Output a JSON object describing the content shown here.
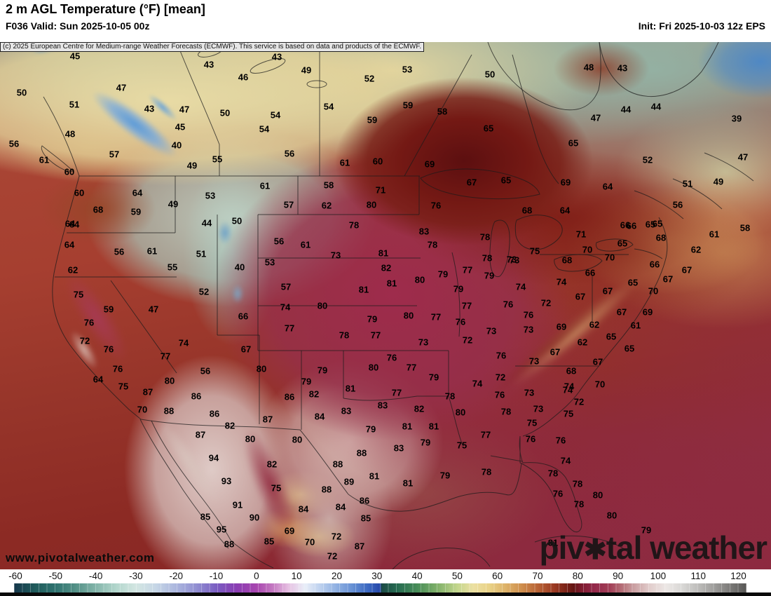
{
  "header": {
    "title": "2 m AGL Temperature (°F) [mean]",
    "valid": "F036 Valid: Sun 2025-10-05 00z",
    "init": "Init: Fri 2025-10-03 12z EPS"
  },
  "copyright": "(c) 2025 European Centre for Medium-range Weather Forecasts (ECMWF). This service is based on data and products of the ECMWF.",
  "watermark": {
    "site": "www.pivotalweather.com",
    "brand_left": "piv",
    "brand_flower": "✱",
    "brand_right": "tal weather"
  },
  "chart_data": {
    "type": "heatmap",
    "title": "2 m AGL Temperature (°F) [mean]",
    "units": "°F",
    "model": "ECMWF EPS ensemble mean",
    "forecast_hour": "F036",
    "valid_time": "Sun 2025-10-05 00z",
    "init_time": "Fri 2025-10-03 12z",
    "legend_position": "bottom",
    "colorbar": {
      "min": -60,
      "max": 120,
      "ticks": [
        -60,
        -50,
        -40,
        -30,
        -20,
        -10,
        0,
        10,
        20,
        30,
        40,
        50,
        60,
        70,
        80,
        90,
        100,
        110,
        120
      ],
      "stops": [
        [
          -60,
          "#173a4d"
        ],
        [
          -55,
          "#205c5c"
        ],
        [
          -50,
          "#2f7370"
        ],
        [
          -45,
          "#549187"
        ],
        [
          -40,
          "#83b5aa"
        ],
        [
          -35,
          "#b2d6cc"
        ],
        [
          -30,
          "#d3e6e2"
        ],
        [
          -25,
          "#c6d6e6"
        ],
        [
          -20,
          "#abb6de"
        ],
        [
          -15,
          "#9290d2"
        ],
        [
          -10,
          "#7a5ec2"
        ],
        [
          -5,
          "#8a3eb3"
        ],
        [
          0,
          "#a846af"
        ],
        [
          4,
          "#c478c1"
        ],
        [
          8,
          "#e6c0e2"
        ],
        [
          12,
          "#e9eef8"
        ],
        [
          16,
          "#bcd0ee"
        ],
        [
          20,
          "#8fb0e2"
        ],
        [
          24,
          "#6690d4"
        ],
        [
          28,
          "#3a66c0"
        ],
        [
          30.8,
          "#2547a8"
        ],
        [
          31.2,
          "#1c4a44"
        ],
        [
          35,
          "#266b51"
        ],
        [
          40,
          "#478c58"
        ],
        [
          45,
          "#7fb069"
        ],
        [
          50,
          "#c3d68d"
        ],
        [
          54,
          "#ece0a2"
        ],
        [
          58,
          "#e9d287"
        ],
        [
          62,
          "#ddb269"
        ],
        [
          66,
          "#cf8f4e"
        ],
        [
          70,
          "#b96436"
        ],
        [
          74,
          "#9c3c24"
        ],
        [
          77,
          "#7c2418"
        ],
        [
          79,
          "#641414"
        ],
        [
          81,
          "#7f1c30"
        ],
        [
          84,
          "#93284a"
        ],
        [
          88,
          "#a23f57"
        ],
        [
          91,
          "#b56f77"
        ],
        [
          94,
          "#caa0a2"
        ],
        [
          98,
          "#e2cecd"
        ],
        [
          102,
          "#ece7e5"
        ],
        [
          106,
          "#d9d8d6"
        ],
        [
          110,
          "#bdbcba"
        ],
        [
          114,
          "#9e9d9b"
        ],
        [
          118,
          "#7b7a78"
        ],
        [
          122,
          "#585755"
        ]
      ]
    },
    "station_values": [
      [
        107,
        80,
        "45"
      ],
      [
        298,
        92,
        "43"
      ],
      [
        347,
        110,
        "46"
      ],
      [
        173,
        125,
        "47"
      ],
      [
        31,
        132,
        "50"
      ],
      [
        106,
        149,
        "51"
      ],
      [
        213,
        155,
        "43"
      ],
      [
        263,
        156,
        "47"
      ],
      [
        321,
        161,
        "50"
      ],
      [
        257,
        181,
        "45"
      ],
      [
        100,
        191,
        "48"
      ],
      [
        20,
        205,
        "56"
      ],
      [
        252,
        207,
        "40"
      ],
      [
        163,
        220,
        "57"
      ],
      [
        310,
        227,
        "55"
      ],
      [
        63,
        228,
        "61"
      ],
      [
        274,
        236,
        "49"
      ],
      [
        99,
        245,
        "60"
      ],
      [
        113,
        275,
        "60"
      ],
      [
        196,
        275,
        "64"
      ],
      [
        300,
        279,
        "53"
      ],
      [
        247,
        291,
        "49"
      ],
      [
        140,
        299,
        "68"
      ],
      [
        194,
        302,
        "59"
      ],
      [
        100,
        319,
        "64"
      ],
      [
        295,
        318,
        "44"
      ],
      [
        338,
        315,
        "50"
      ],
      [
        395,
        81,
        "43"
      ],
      [
        437,
        100,
        "49"
      ],
      [
        527,
        112,
        "52"
      ],
      [
        581,
        99,
        "53"
      ],
      [
        699,
        106,
        "50"
      ],
      [
        469,
        152,
        "54"
      ],
      [
        582,
        150,
        "59"
      ],
      [
        631,
        159,
        "58"
      ],
      [
        393,
        164,
        "54"
      ],
      [
        377,
        184,
        "54"
      ],
      [
        531,
        171,
        "59"
      ],
      [
        697,
        183,
        "65"
      ],
      [
        413,
        219,
        "56"
      ],
      [
        492,
        232,
        "61"
      ],
      [
        539,
        230,
        "60"
      ],
      [
        613,
        234,
        "69"
      ],
      [
        673,
        260,
        "67"
      ],
      [
        722,
        257,
        "65"
      ],
      [
        378,
        265,
        "61"
      ],
      [
        469,
        264,
        "58"
      ],
      [
        543,
        271,
        "71"
      ],
      [
        412,
        292,
        "57"
      ],
      [
        466,
        293,
        "62"
      ],
      [
        530,
        292,
        "80"
      ],
      [
        622,
        293,
        "76"
      ],
      [
        840,
        96,
        "48"
      ],
      [
        888,
        97,
        "43"
      ],
      [
        893,
        156,
        "44"
      ],
      [
        936,
        152,
        "44"
      ],
      [
        1051,
        169,
        "39"
      ],
      [
        850,
        168,
        "47"
      ],
      [
        818,
        204,
        "65"
      ],
      [
        924,
        228,
        "52"
      ],
      [
        1060,
        224,
        "47"
      ],
      [
        807,
        260,
        "69"
      ],
      [
        867,
        266,
        "64"
      ],
      [
        981,
        262,
        "51"
      ],
      [
        1025,
        259,
        "49"
      ],
      [
        967,
        292,
        "56"
      ],
      [
        806,
        300,
        "64"
      ],
      [
        752,
        300,
        "68"
      ],
      [
        892,
        321,
        "66"
      ],
      [
        928,
        320,
        "65"
      ],
      [
        106,
        320,
        "64"
      ],
      [
        99,
        349,
        "64"
      ],
      [
        170,
        359,
        "56"
      ],
      [
        217,
        358,
        "61"
      ],
      [
        287,
        362,
        "51"
      ],
      [
        246,
        381,
        "55"
      ],
      [
        342,
        381,
        "40"
      ],
      [
        104,
        385,
        "62"
      ],
      [
        291,
        416,
        "52"
      ],
      [
        112,
        420,
        "75"
      ],
      [
        155,
        441,
        "59"
      ],
      [
        219,
        441,
        "47"
      ],
      [
        347,
        451,
        "66"
      ],
      [
        127,
        460,
        "76"
      ],
      [
        121,
        486,
        "72"
      ],
      [
        262,
        489,
        "74"
      ],
      [
        155,
        498,
        "76"
      ],
      [
        351,
        498,
        "67"
      ],
      [
        236,
        508,
        "77"
      ],
      [
        168,
        526,
        "76"
      ],
      [
        293,
        529,
        "56"
      ],
      [
        140,
        541,
        "64"
      ],
      [
        242,
        543,
        "80"
      ],
      [
        176,
        551,
        "75"
      ],
      [
        505,
        321,
        "78"
      ],
      [
        605,
        330,
        "83"
      ],
      [
        692,
        338,
        "78"
      ],
      [
        398,
        344,
        "56"
      ],
      [
        436,
        349,
        "61"
      ],
      [
        617,
        349,
        "78"
      ],
      [
        479,
        364,
        "73"
      ],
      [
        547,
        361,
        "81"
      ],
      [
        695,
        368,
        "78"
      ],
      [
        730,
        370,
        "73"
      ],
      [
        385,
        374,
        "53"
      ],
      [
        551,
        382,
        "82"
      ],
      [
        667,
        385,
        "77"
      ],
      [
        632,
        391,
        "79"
      ],
      [
        698,
        393,
        "79"
      ],
      [
        599,
        399,
        "80"
      ],
      [
        559,
        404,
        "81"
      ],
      [
        408,
        409,
        "57"
      ],
      [
        654,
        412,
        "79"
      ],
      [
        519,
        413,
        "81"
      ],
      [
        407,
        438,
        "74"
      ],
      [
        460,
        436,
        "80"
      ],
      [
        666,
        436,
        "77"
      ],
      [
        725,
        434,
        "76"
      ],
      [
        583,
        450,
        "80"
      ],
      [
        622,
        452,
        "77"
      ],
      [
        531,
        455,
        "79"
      ],
      [
        657,
        459,
        "76"
      ],
      [
        413,
        468,
        "77"
      ],
      [
        701,
        472,
        "73"
      ],
      [
        491,
        478,
        "78"
      ],
      [
        536,
        478,
        "77"
      ],
      [
        667,
        485,
        "72"
      ],
      [
        604,
        488,
        "73"
      ],
      [
        559,
        510,
        "76"
      ],
      [
        715,
        507,
        "76"
      ],
      [
        533,
        524,
        "80"
      ],
      [
        587,
        524,
        "77"
      ],
      [
        460,
        528,
        "79"
      ],
      [
        373,
        526,
        "80"
      ],
      [
        437,
        544,
        "79"
      ],
      [
        619,
        538,
        "79"
      ],
      [
        714,
        538,
        "72"
      ],
      [
        681,
        547,
        "74"
      ],
      [
        500,
        554,
        "81"
      ],
      [
        901,
        322,
        "66"
      ],
      [
        938,
        319,
        "65"
      ],
      [
        1063,
        325,
        "58"
      ],
      [
        829,
        334,
        "71"
      ],
      [
        943,
        339,
        "68"
      ],
      [
        1019,
        334,
        "61"
      ],
      [
        888,
        347,
        "65"
      ],
      [
        993,
        356,
        "62"
      ],
      [
        838,
        356,
        "70"
      ],
      [
        763,
        358,
        "75"
      ],
      [
        734,
        371,
        "73"
      ],
      [
        870,
        367,
        "70"
      ],
      [
        809,
        371,
        "68"
      ],
      [
        934,
        377,
        "66"
      ],
      [
        842,
        389,
        "66"
      ],
      [
        980,
        385,
        "67"
      ],
      [
        953,
        398,
        "67"
      ],
      [
        903,
        403,
        "65"
      ],
      [
        801,
        402,
        "74"
      ],
      [
        743,
        409,
        "74"
      ],
      [
        867,
        415,
        "67"
      ],
      [
        828,
        423,
        "67"
      ],
      [
        932,
        415,
        "70"
      ],
      [
        779,
        432,
        "72"
      ],
      [
        924,
        445,
        "69"
      ],
      [
        887,
        445,
        "67"
      ],
      [
        754,
        449,
        "76"
      ],
      [
        848,
        463,
        "62"
      ],
      [
        907,
        464,
        "61"
      ],
      [
        801,
        466,
        "69"
      ],
      [
        754,
        470,
        "73"
      ],
      [
        872,
        480,
        "65"
      ],
      [
        831,
        488,
        "62"
      ],
      [
        898,
        497,
        "65"
      ],
      [
        792,
        502,
        "67"
      ],
      [
        762,
        515,
        "73"
      ],
      [
        853,
        516,
        "67"
      ],
      [
        815,
        529,
        "68"
      ],
      [
        812,
        551,
        "74"
      ],
      [
        856,
        548,
        "70"
      ],
      [
        211,
        559,
        "87"
      ],
      [
        280,
        565,
        "86"
      ],
      [
        203,
        584,
        "70"
      ],
      [
        241,
        586,
        "88"
      ],
      [
        306,
        590,
        "86"
      ],
      [
        286,
        620,
        "87"
      ],
      [
        328,
        607,
        "82"
      ],
      [
        357,
        626,
        "80"
      ],
      [
        305,
        653,
        "94"
      ],
      [
        323,
        686,
        "93"
      ],
      [
        339,
        720,
        "91"
      ],
      [
        293,
        737,
        "85"
      ],
      [
        363,
        738,
        "90"
      ],
      [
        316,
        755,
        "95"
      ],
      [
        327,
        776,
        "88"
      ],
      [
        413,
        566,
        "86"
      ],
      [
        448,
        562,
        "82"
      ],
      [
        566,
        560,
        "77"
      ],
      [
        546,
        578,
        "83"
      ],
      [
        642,
        565,
        "78"
      ],
      [
        713,
        563,
        "76"
      ],
      [
        722,
        587,
        "78"
      ],
      [
        598,
        583,
        "82"
      ],
      [
        657,
        588,
        "80"
      ],
      [
        456,
        594,
        "84"
      ],
      [
        494,
        586,
        "83"
      ],
      [
        382,
        598,
        "87"
      ],
      [
        529,
        612,
        "79"
      ],
      [
        581,
        608,
        "81"
      ],
      [
        619,
        608,
        "81"
      ],
      [
        693,
        620,
        "77"
      ],
      [
        424,
        627,
        "80"
      ],
      [
        607,
        631,
        "79"
      ],
      [
        659,
        635,
        "75"
      ],
      [
        569,
        639,
        "83"
      ],
      [
        516,
        646,
        "88"
      ],
      [
        388,
        662,
        "82"
      ],
      [
        482,
        662,
        "88"
      ],
      [
        635,
        678,
        "79"
      ],
      [
        694,
        673,
        "78"
      ],
      [
        534,
        679,
        "81"
      ],
      [
        498,
        687,
        "89"
      ],
      [
        394,
        696,
        "75"
      ],
      [
        466,
        698,
        "88"
      ],
      [
        582,
        689,
        "81"
      ],
      [
        520,
        714,
        "86"
      ],
      [
        433,
        726,
        "84"
      ],
      [
        486,
        723,
        "84"
      ],
      [
        522,
        739,
        "85"
      ],
      [
        413,
        757,
        "69"
      ],
      [
        384,
        772,
        "85"
      ],
      [
        442,
        773,
        "70"
      ],
      [
        480,
        765,
        "72"
      ],
      [
        513,
        779,
        "87"
      ],
      [
        474,
        793,
        "72"
      ],
      [
        755,
        560,
        "73"
      ],
      [
        810,
        556,
        "74"
      ],
      [
        826,
        573,
        "72"
      ],
      [
        768,
        583,
        "73"
      ],
      [
        811,
        590,
        "75"
      ],
      [
        759,
        603,
        "75"
      ],
      [
        757,
        626,
        "76"
      ],
      [
        800,
        628,
        "76"
      ],
      [
        807,
        657,
        "74"
      ],
      [
        789,
        675,
        "78"
      ],
      [
        824,
        690,
        "78"
      ],
      [
        796,
        704,
        "76"
      ],
      [
        853,
        706,
        "80"
      ],
      [
        826,
        719,
        "78"
      ],
      [
        873,
        735,
        "80"
      ],
      [
        922,
        756,
        "79"
      ],
      [
        789,
        774,
        "81"
      ]
    ]
  }
}
